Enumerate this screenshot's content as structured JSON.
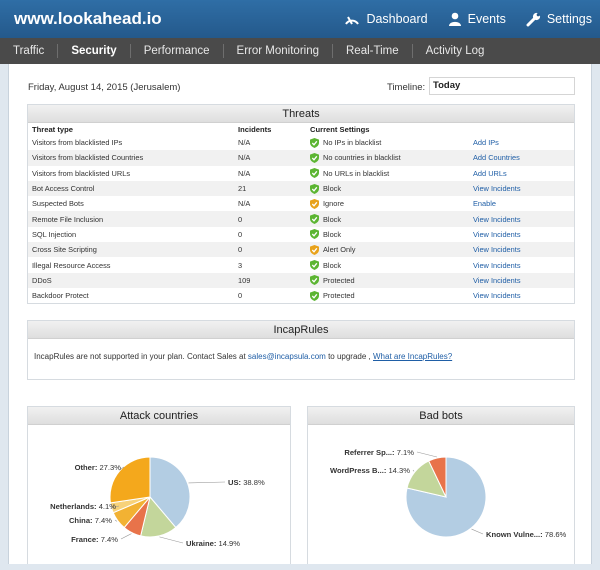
{
  "app": {
    "brand": "www.lookahead.io",
    "top_nav": [
      {
        "label": "Dashboard",
        "icon": "dashboard-gauge-icon"
      },
      {
        "label": "Events",
        "icon": "user-icon"
      },
      {
        "label": "Settings",
        "icon": "wrench-icon"
      }
    ]
  },
  "subnav": {
    "tabs": [
      "Traffic",
      "Security",
      "Performance",
      "Error Monitoring",
      "Real-Time",
      "Activity Log"
    ],
    "active": "Security"
  },
  "toolbar": {
    "date": "Friday, August 14, 2015 (Jerusalem)",
    "timeline_label": "Timeline:",
    "timeline_value": "Today"
  },
  "threats": {
    "title": "Threats",
    "columns": [
      "Threat type",
      "Incidents",
      "Current Settings",
      ""
    ],
    "rows": [
      {
        "type": "Visitors from blacklisted IPs",
        "incidents": "N/A",
        "status": "green",
        "setting": "No IPs in blacklist",
        "action": "Add IPs"
      },
      {
        "type": "Visitors from blacklisted Countries",
        "incidents": "N/A",
        "status": "green",
        "setting": "No countries in blacklist",
        "action": "Add Countries"
      },
      {
        "type": "Visitors from blacklisted URLs",
        "incidents": "N/A",
        "status": "green",
        "setting": "No URLs in blacklist",
        "action": "Add URLs"
      },
      {
        "type": "Bot Access Control",
        "incidents": "21",
        "status": "green",
        "setting": "Block",
        "action": "View Incidents"
      },
      {
        "type": "Suspected Bots",
        "incidents": "N/A",
        "status": "orange",
        "setting": "Ignore",
        "action": "Enable"
      },
      {
        "type": "Remote File Inclusion",
        "incidents": "0",
        "status": "green",
        "setting": "Block",
        "action": "View Incidents"
      },
      {
        "type": "SQL Injection",
        "incidents": "0",
        "status": "green",
        "setting": "Block",
        "action": "View Incidents"
      },
      {
        "type": "Cross Site Scripting",
        "incidents": "0",
        "status": "orange",
        "setting": "Alert Only",
        "action": "View Incidents"
      },
      {
        "type": "Illegal Resource Access",
        "incidents": "3",
        "status": "green",
        "setting": "Block",
        "action": "View Incidents"
      },
      {
        "type": "DDoS",
        "incidents": "109",
        "status": "green",
        "setting": "Protected",
        "action": "View Incidents"
      },
      {
        "type": "Backdoor Protect",
        "incidents": "0",
        "status": "green",
        "setting": "Protected",
        "action": "View Incidents"
      }
    ]
  },
  "incaprules": {
    "title": "IncapRules",
    "text_before": "IncapRules are not supported in your plan. Contact Sales at ",
    "email": "sales@incapsula.com",
    "text_after": " to upgrade , ",
    "link": "What are IncapRules?"
  },
  "colors": {
    "header": "#2a6496",
    "subnav": "#4a4a4a",
    "shield_green": "#5cb532",
    "shield_orange": "#e8a21a",
    "link": "#1f5ea6"
  },
  "chart_data": [
    {
      "type": "pie",
      "title": "Attack countries",
      "slices": [
        {
          "label": "US",
          "value": 38.8,
          "color": "#b3cde3"
        },
        {
          "label": "Ukraine",
          "value": 14.9,
          "color": "#c3d69b"
        },
        {
          "label": "France",
          "value": 7.4,
          "color": "#e8734a"
        },
        {
          "label": "China",
          "value": 7.4,
          "color": "#f2b233"
        },
        {
          "label": "Netherlands",
          "value": 4.1,
          "color": "#f7d27a"
        },
        {
          "label": "Other",
          "value": 27.3,
          "color": "#f4a81c"
        }
      ]
    },
    {
      "type": "pie",
      "title": "Bad bots",
      "slices": [
        {
          "label": "Known Vulne...",
          "value": 78.6,
          "color": "#b3cde3"
        },
        {
          "label": "WordPress B...",
          "value": 14.3,
          "color": "#c3d69b"
        },
        {
          "label": "Referrer Sp...",
          "value": 7.1,
          "color": "#e8734a"
        }
      ]
    }
  ]
}
